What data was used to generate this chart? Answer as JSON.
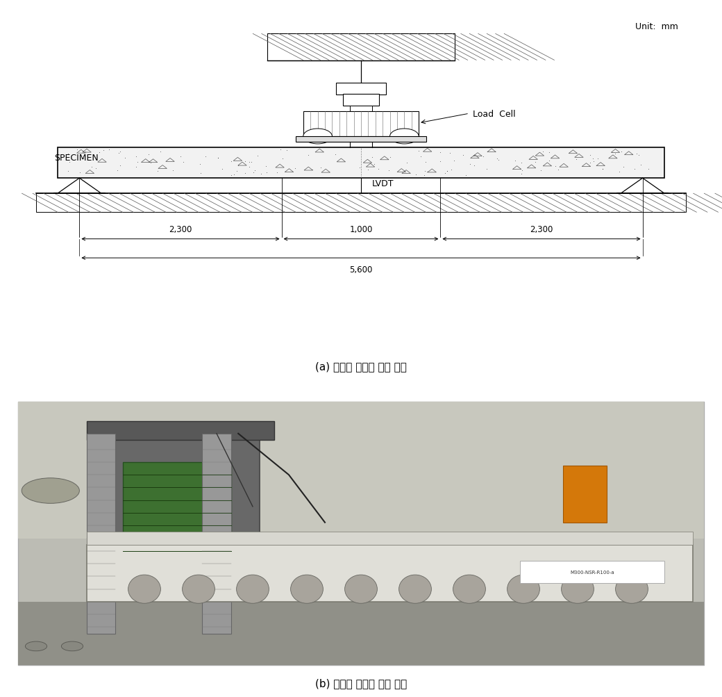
{
  "caption_a": "(a) 휘성능 실험체 설치 도면",
  "caption_b": "(b) 휘성능 실험체 설치 모습",
  "unit_label": "Unit:  mm",
  "load_cell_label": "Load  Cell",
  "specimen_label": "SPECIMEN",
  "lvdt_label": "LVDT",
  "dim1": "2,300",
  "dim2": "1,000",
  "dim3": "2,300",
  "dim_total": "5,600",
  "bg_color": "#ffffff",
  "line_color": "#000000",
  "fig_width": 10.4,
  "fig_height": 10.04
}
